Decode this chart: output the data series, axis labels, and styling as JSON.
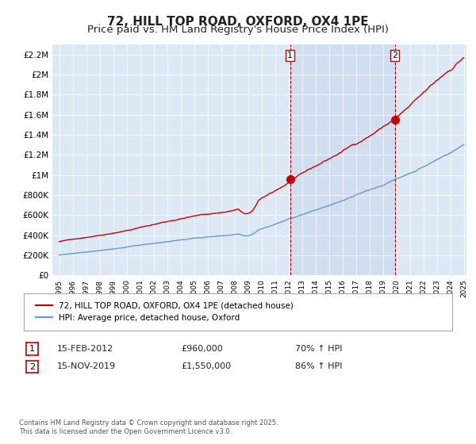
{
  "title": "72, HILL TOP ROAD, OXFORD, OX4 1PE",
  "subtitle": "Price paid vs. HM Land Registry's House Price Index (HPI)",
  "title_fontsize": 11,
  "subtitle_fontsize": 9.5,
  "background_color": "#ffffff",
  "plot_bg_color": "#dce9f5",
  "ylim": [
    0,
    2300000
  ],
  "yticks": [
    0,
    200000,
    400000,
    600000,
    800000,
    1000000,
    1200000,
    1400000,
    1600000,
    1800000,
    2000000,
    2200000
  ],
  "ytick_labels": [
    "£0",
    "£200K",
    "£400K",
    "£600K",
    "£800K",
    "£1M",
    "£1.2M",
    "£1.4M",
    "£1.6M",
    "£1.8M",
    "£2M",
    "£2.2M"
  ],
  "x_start_year": 1995,
  "x_end_year": 2025,
  "red_line_color": "#cc0000",
  "blue_line_color": "#6699cc",
  "marker1_date": 2012.12,
  "marker1_value": 960000,
  "marker2_date": 2019.88,
  "marker2_value": 1550000,
  "vline_color": "#cc0000",
  "shade_color": "#dce9f5",
  "legend_line1": "72, HILL TOP ROAD, OXFORD, OX4 1PE (detached house)",
  "legend_line2": "HPI: Average price, detached house, Oxford",
  "annotation1_label": "1",
  "annotation1_date": "15-FEB-2012",
  "annotation1_price": "£960,000",
  "annotation1_hpi": "70% ↑ HPI",
  "annotation2_label": "2",
  "annotation2_date": "15-NOV-2019",
  "annotation2_price": "£1,550,000",
  "annotation2_hpi": "86% ↑ HPI",
  "footer": "Contains HM Land Registry data © Crown copyright and database right 2025.\nThis data is licensed under the Open Government Licence v3.0."
}
